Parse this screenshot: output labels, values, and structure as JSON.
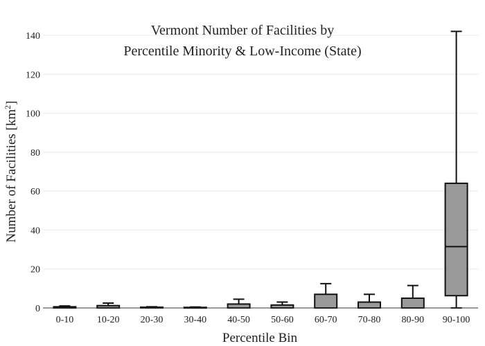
{
  "chart_data": {
    "type": "box",
    "title_lines": [
      "Vermont Number of Facilities by",
      "Percentile Minority & Low-Income (State)"
    ],
    "xlabel": "Percentile Bin",
    "ylabel": "Number of Facilities  [km",
    "ylabel_sup": "2",
    "ylabel_end": "]",
    "ylim": [
      0,
      145
    ],
    "yticks": [
      0,
      20,
      40,
      60,
      80,
      100,
      120,
      140
    ],
    "grid": true,
    "box_color": "#999999",
    "categories": [
      "0-10",
      "10-20",
      "20-30",
      "30-40",
      "40-50",
      "50-60",
      "60-70",
      "70-80",
      "80-90",
      "90-100"
    ],
    "boxes": [
      {
        "min": 0,
        "q1": 0,
        "median": 0,
        "q3": 0.6,
        "max": 1.0
      },
      {
        "min": 0,
        "q1": 0,
        "median": 0,
        "q3": 1.2,
        "max": 2.5
      },
      {
        "min": 0,
        "q1": 0,
        "median": 0,
        "q3": 0.4,
        "max": 0.6
      },
      {
        "min": 0,
        "q1": 0,
        "median": 0,
        "q3": 0.3,
        "max": 0.5
      },
      {
        "min": 0,
        "q1": 0,
        "median": 0,
        "q3": 2.0,
        "max": 4.5
      },
      {
        "min": 0,
        "q1": 0,
        "median": 0,
        "q3": 1.5,
        "max": 3.0
      },
      {
        "min": 0,
        "q1": 0,
        "median": 0,
        "q3": 7.0,
        "max": 12.5
      },
      {
        "min": 0,
        "q1": 0,
        "median": 0,
        "q3": 3.0,
        "max": 7.0
      },
      {
        "min": 0,
        "q1": 0,
        "median": 0,
        "q3": 5.0,
        "max": 11.5
      },
      {
        "min": 0,
        "q1": 6.3,
        "median": 31.5,
        "q3": 64.0,
        "max": 142.0
      }
    ]
  }
}
